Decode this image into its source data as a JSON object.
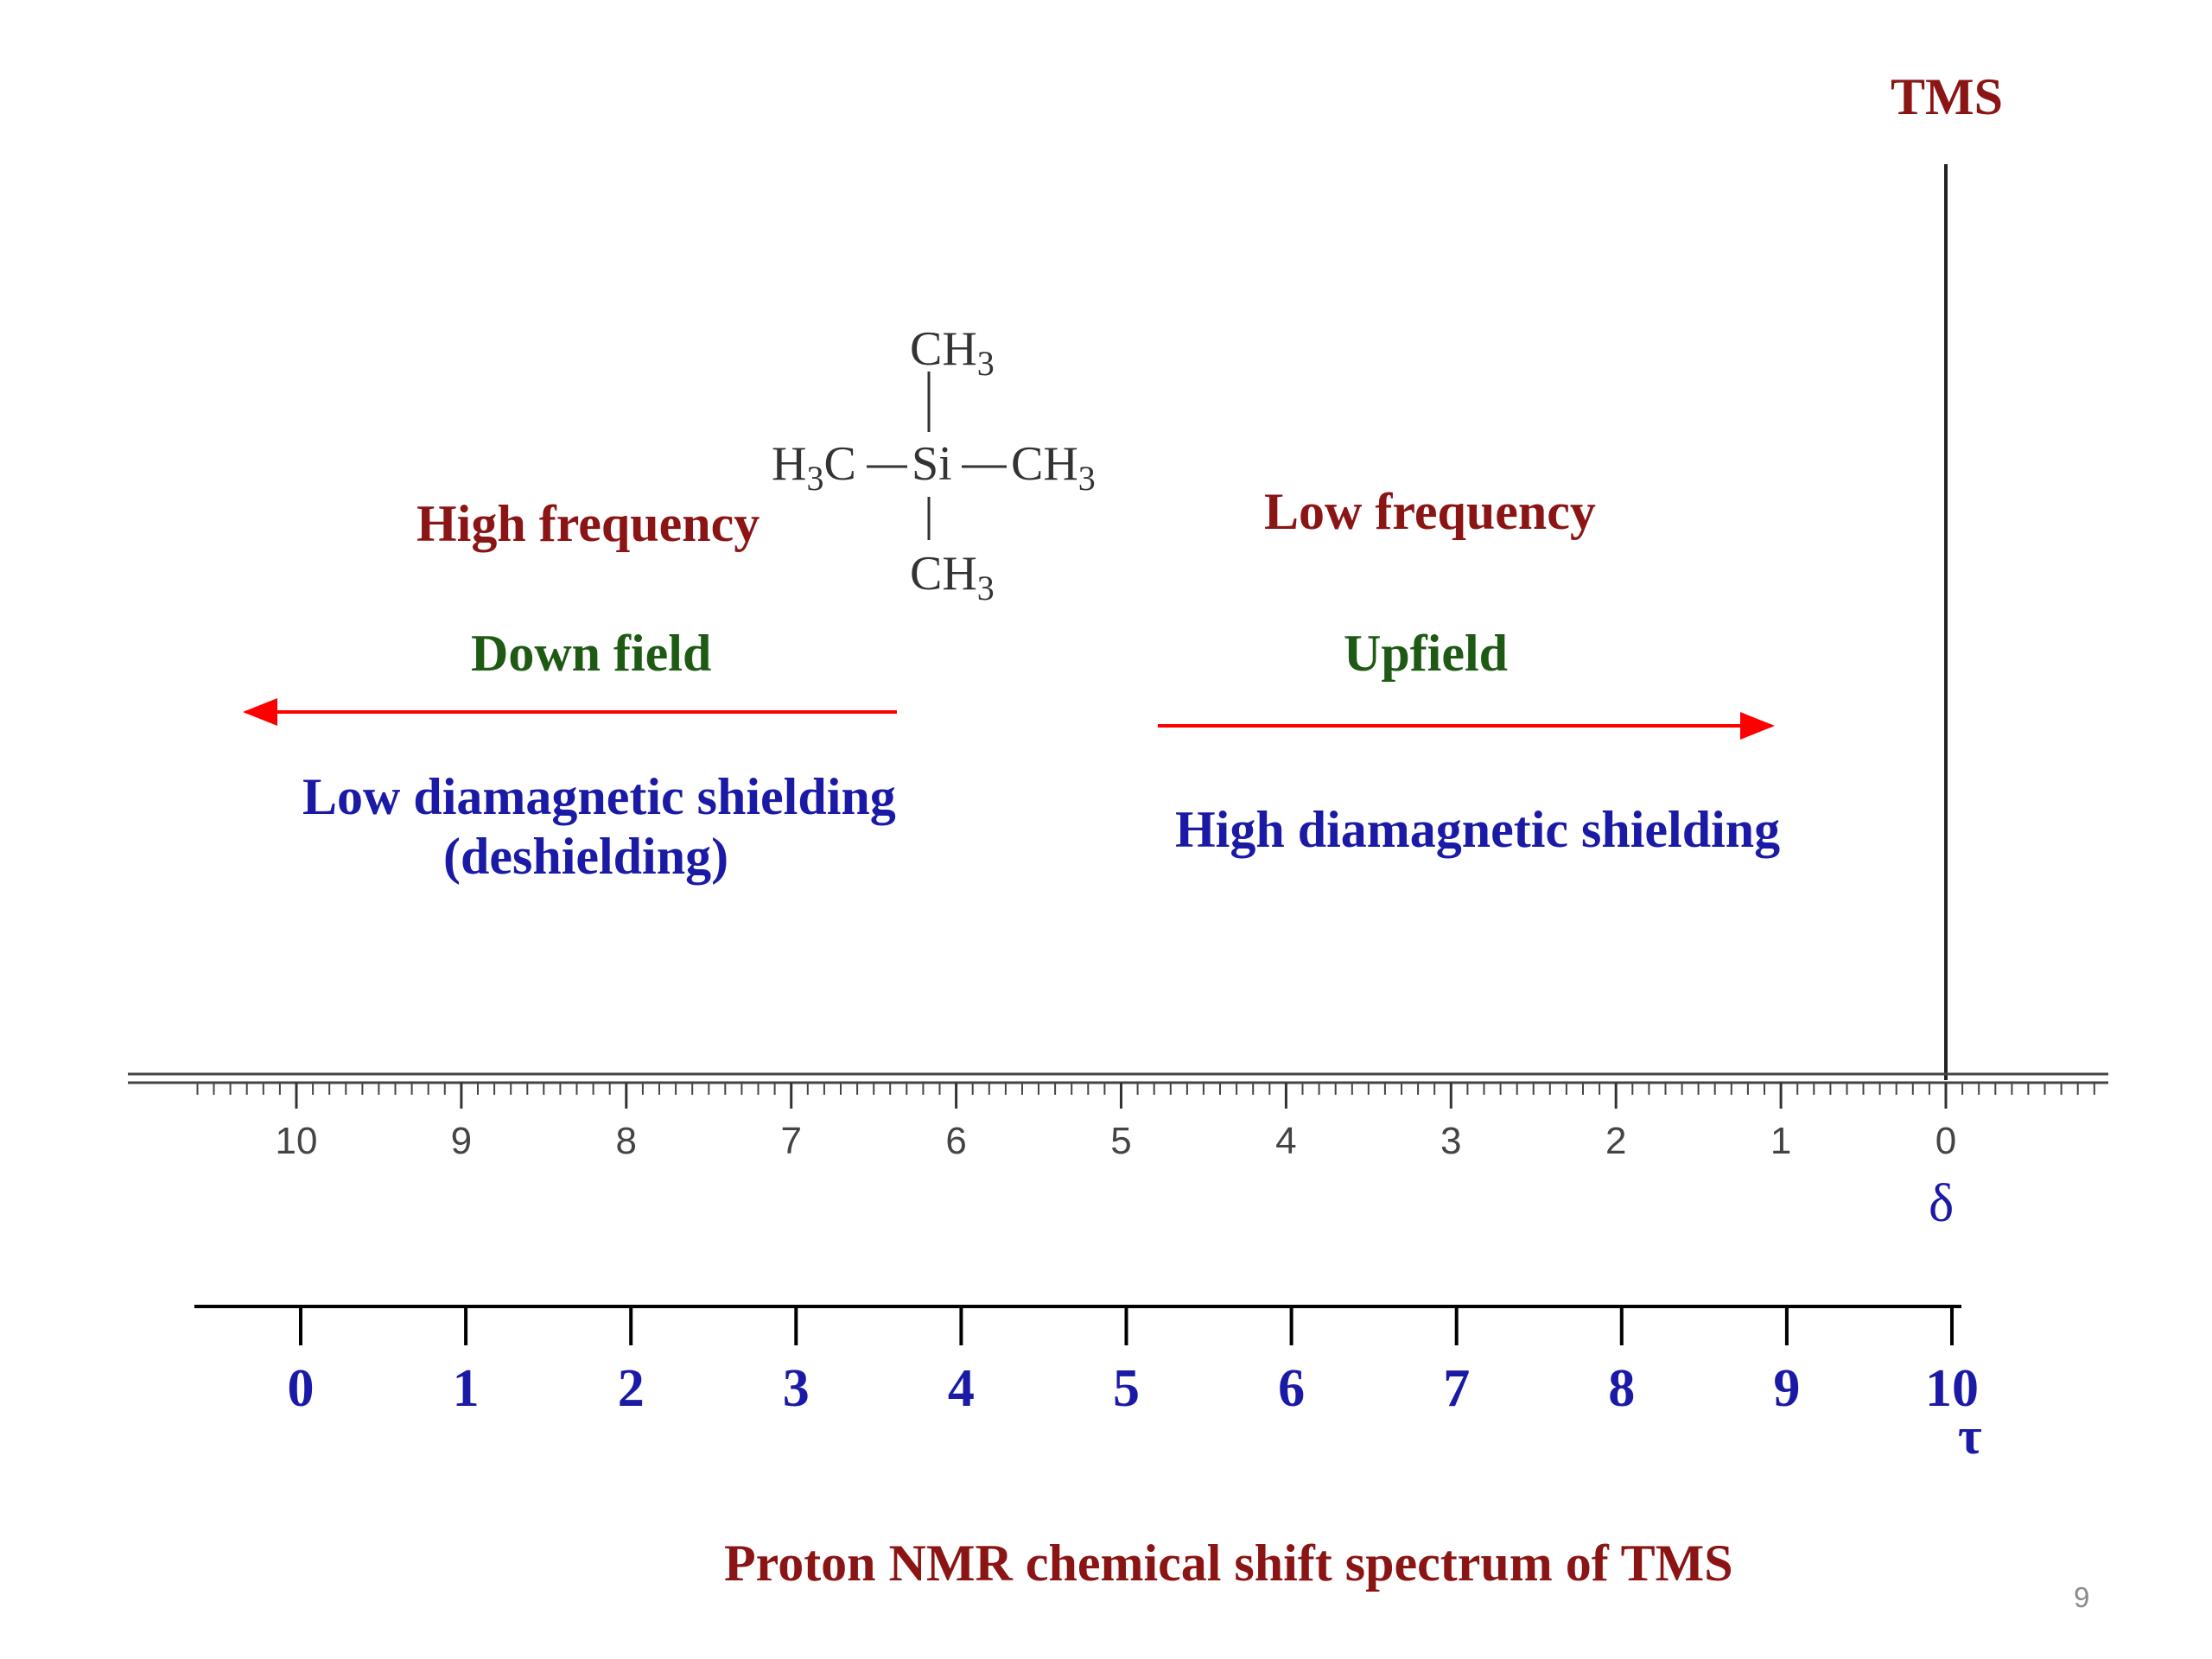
{
  "peak_label": "TMS",
  "molecule": {
    "top": "CH",
    "top_sub": "3",
    "left": "H",
    "left_sub": "3",
    "left_tail": "C",
    "center": "Si",
    "right": "CH",
    "right_sub": "3",
    "bottom": "CH",
    "bottom_sub": "3"
  },
  "left_side": {
    "frequency": "High frequency",
    "field": "Down field",
    "shielding_line1": "Low diamagnetic shielding",
    "shielding_line2": "(deshielding)"
  },
  "right_side": {
    "frequency": "Low frequency",
    "field": "Upfield",
    "shielding": "High diamagnetic shielding"
  },
  "colors": {
    "maroon": "#8b1414",
    "green": "#1e5a14",
    "blue": "#1a1aa6",
    "arrow": "#ff0000",
    "axis": "#333333"
  },
  "delta_axis": {
    "symbol": "δ",
    "ticks": [
      "10",
      "9",
      "8",
      "7",
      "6",
      "5",
      "4",
      "3",
      "2",
      "1",
      "0"
    ]
  },
  "tau_axis": {
    "symbol": "τ",
    "ticks": [
      "0",
      "1",
      "2",
      "3",
      "4",
      "5",
      "6",
      "7",
      "8",
      "9",
      "10"
    ]
  },
  "caption": "Proton NMR chemical shift spectrum of TMS",
  "page_number": "9"
}
